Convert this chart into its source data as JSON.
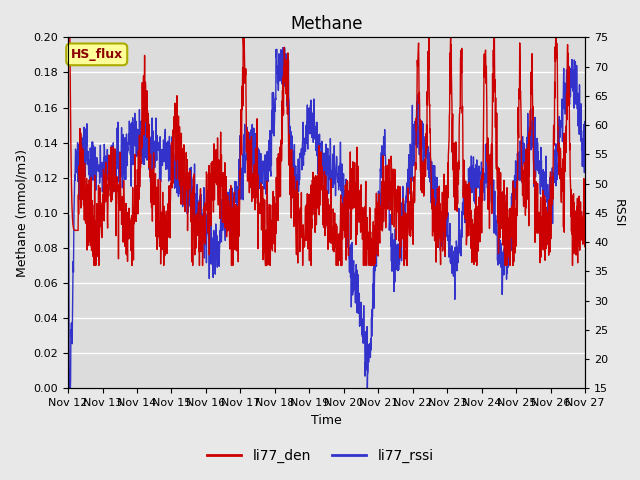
{
  "title": "Methane",
  "ylabel_left": "Methane (mmol/m3)",
  "ylabel_right": "RSSI",
  "xlabel": "Time",
  "ylim_left": [
    0.0,
    0.2
  ],
  "ylim_right": [
    15,
    75
  ],
  "yticks_left": [
    0.0,
    0.02,
    0.04,
    0.06,
    0.08,
    0.1,
    0.12,
    0.14,
    0.16,
    0.18,
    0.2
  ],
  "yticks_right": [
    15,
    20,
    25,
    30,
    35,
    40,
    45,
    50,
    55,
    60,
    65,
    70,
    75
  ],
  "xtick_labels": [
    "Nov 12",
    "Nov 13",
    "Nov 14",
    "Nov 15",
    "Nov 16",
    "Nov 17",
    "Nov 18",
    "Nov 19",
    "Nov 20",
    "Nov 21",
    "Nov 22",
    "Nov 23",
    "Nov 24",
    "Nov 25",
    "Nov 26",
    "Nov 27"
  ],
  "color_red": "#cc0000",
  "color_blue": "#3333cc",
  "legend_label_red": "li77_den",
  "legend_label_blue": "li77_rssi",
  "box_label": "HS_flux",
  "box_facecolor": "#ffff99",
  "box_edgecolor": "#aaaa00",
  "background_color": "#dcdcdc",
  "grid_color": "#ffffff",
  "title_fontsize": 12,
  "axis_label_fontsize": 9,
  "tick_fontsize": 8,
  "legend_fontsize": 10,
  "n_points": 2000,
  "linewidth": 1.0
}
